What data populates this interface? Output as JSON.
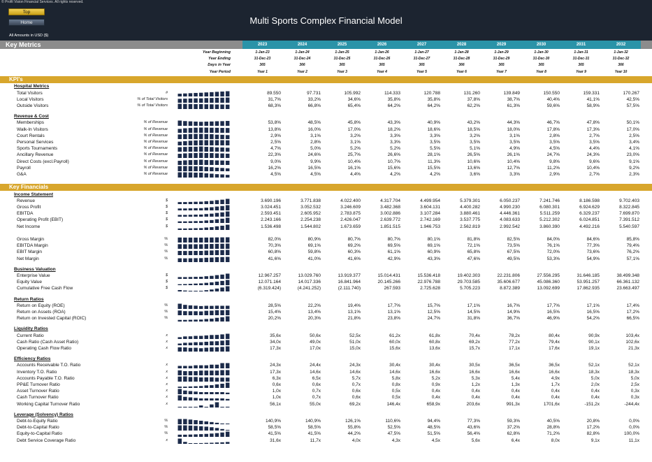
{
  "header": {
    "copyright": "© Profit Vision Financial Services. All rights reserved.",
    "nav_top": "Top",
    "nav_home": "Home",
    "title": "Multi Sports Complex Financial Model",
    "amounts_note": "All Amounts in  USD ($)"
  },
  "key_metrics_title": "Key Metrics",
  "years": [
    "2023",
    "2024",
    "2025",
    "2026",
    "2027",
    "2028",
    "2029",
    "2030",
    "2031",
    "2032"
  ],
  "info_rows": [
    {
      "label": "Year Beginning",
      "values": [
        "1-Jan-23",
        "1-Jan-24",
        "1-Jan-25",
        "1-Jan-26",
        "1-Jan-27",
        "1-Jan-28",
        "1-Jan-29",
        "1-Jan-30",
        "1-Jan-31",
        "1-Jan-32"
      ]
    },
    {
      "label": "Year Ending",
      "values": [
        "31-Dec-23",
        "31-Dec-24",
        "31-Dec-25",
        "31-Dec-26",
        "31-Dec-27",
        "31-Dec-28",
        "31-Dec-29",
        "31-Dec-30",
        "31-Dec-31",
        "31-Dec-32"
      ]
    },
    {
      "label": "Days in Year",
      "values": [
        "365",
        "366",
        "365",
        "365",
        "365",
        "366",
        "365",
        "365",
        "365",
        "366"
      ]
    },
    {
      "label": "Year Period",
      "values": [
        "Year 1",
        "Year 2",
        "Year 3",
        "Year 4",
        "Year 5",
        "Year 6",
        "Year 7",
        "Year 8",
        "Year 9",
        "Year 10"
      ]
    }
  ],
  "colors": {
    "header_bg": "#1c2430",
    "section_bar": "#d8a62c",
    "year_header": "#2a93a8",
    "key_metrics_bar": "#8c8c8c",
    "spark": "#1c2b4a"
  },
  "sections": [
    {
      "title": "KPI's",
      "groups": [
        {
          "title": "Hospital Metrics",
          "rows": [
            {
              "label": "Total Visitors",
              "unit": "#",
              "values": [
                "89.550",
                "97.731",
                "105.992",
                "114.333",
                "120.788",
                "131.260",
                "139.849",
                "150.550",
                "159.331",
                "170.267"
              ]
            },
            {
              "label": "Local Visitors",
              "unit": "% of Total Visitors",
              "values": [
                "31,7%",
                "33,2%",
                "34,6%",
                "35,8%",
                "35,8%",
                "37,8%",
                "38,7%",
                "40,4%",
                "41,1%",
                "42,5%"
              ]
            },
            {
              "label": "Outside Visitors",
              "unit": "% of Total Visitors",
              "values": [
                "68,3%",
                "66,8%",
                "65,4%",
                "64,2%",
                "64,2%",
                "62,2%",
                "61,3%",
                "59,6%",
                "58,9%",
                "57,5%"
              ]
            }
          ]
        },
        {
          "title": "Revenue & Cost",
          "rows": [
            {
              "label": "Memberships",
              "unit": "% of Revenue",
              "values": [
                "53,8%",
                "48,5%",
                "45,8%",
                "43,3%",
                "40,9%",
                "43,2%",
                "44,3%",
                "46,7%",
                "47,8%",
                "50,1%"
              ]
            },
            {
              "label": "Walk-In Visitors",
              "unit": "% of Revenue",
              "values": [
                "13,8%",
                "16,0%",
                "17,0%",
                "18,2%",
                "18,6%",
                "18,5%",
                "18,0%",
                "17,8%",
                "17,3%",
                "17,0%"
              ]
            },
            {
              "label": "Court Rentals",
              "unit": "% of Revenue",
              "values": [
                "2,9%",
                "3,1%",
                "3,2%",
                "3,3%",
                "3,3%",
                "3,2%",
                "3,1%",
                "2,8%",
                "2,7%",
                "2,5%"
              ]
            },
            {
              "label": "Personal Services",
              "unit": "% of Revenue",
              "values": [
                "2,5%",
                "2,8%",
                "3,1%",
                "3,3%",
                "3,5%",
                "3,5%",
                "3,5%",
                "3,5%",
                "3,5%",
                "3,4%"
              ]
            },
            {
              "label": "Sports Tournaments",
              "unit": "% of Revenue",
              "values": [
                "4,7%",
                "5,0%",
                "5,2%",
                "5,2%",
                "5,5%",
                "5,1%",
                "4,9%",
                "4,5%",
                "4,4%",
                "4,1%"
              ]
            },
            {
              "label": "Ancillary Revenue",
              "unit": "% of Revenue",
              "values": [
                "22,3%",
                "24,6%",
                "25,7%",
                "26,6%",
                "28,1%",
                "26,5%",
                "26,1%",
                "24,7%",
                "24,3%",
                "23,0%"
              ]
            },
            {
              "label": "Direct Costs (excl.Payroll)",
              "unit": "% of Revenue",
              "values": [
                "9,0%",
                "9,9%",
                "10,4%",
                "10,7%",
                "11,3%",
                "10,6%",
                "10,4%",
                "9,8%",
                "9,6%",
                "9,1%"
              ]
            },
            {
              "label": "Payroll",
              "unit": "% of Revenue",
              "values": [
                "16,2%",
                "16,5%",
                "16,1%",
                "15,6%",
                "15,5%",
                "13,6%",
                "12,7%",
                "11,2%",
                "10,4%",
                "9,2%"
              ]
            },
            {
              "label": "G&A",
              "unit": "% of Revenue",
              "values": [
                "4,5%",
                "4,5%",
                "4,4%",
                "4,2%",
                "4,2%",
                "3,6%",
                "3,3%",
                "2,9%",
                "2,7%",
                "2,3%"
              ]
            }
          ]
        }
      ]
    },
    {
      "title": "Key Financials",
      "groups": [
        {
          "title": "Income Statement",
          "rows": [
            {
              "label": "Revenue",
              "unit": "$",
              "values": [
                "3.690.196",
                "3.771.838",
                "4.022.400",
                "4.317.704",
                "4.499.954",
                "5.379.301",
                "6.050.237",
                "7.241.746",
                "8.186.598",
                "9.702.403"
              ]
            },
            {
              "label": "Gross Profit",
              "unit": "$",
              "values": [
                "3.024.451",
                "3.052.532",
                "3.246.609",
                "3.482.368",
                "3.604.131",
                "4.400.282",
                "4.990.230",
                "6.080.301",
                "6.924.629",
                "8.322.845"
              ]
            },
            {
              "label": "EBITDA",
              "unit": "$",
              "values": [
                "2.593.451",
                "2.605.952",
                "2.783.875",
                "3.002.886",
                "3.107.284",
                "3.880.461",
                "4.446.361",
                "5.511.259",
                "6.329.237",
                "7.699.870"
              ]
            },
            {
              "label": "Operating Profit (EBIT)",
              "unit": "$",
              "values": [
                "2.243.166",
                "2.254.238",
                "2.426.047",
                "2.639.772",
                "2.742.169",
                "3.537.775",
                "4.083.633",
                "5.212.302",
                "6.024.851",
                "7.391.512"
              ]
            },
            {
              "label": "Net Income",
              "unit": "$",
              "values": [
                "1.536.498",
                "1.544.802",
                "1.673.659",
                "1.851.515",
                "1.946.753",
                "2.562.819",
                "2.992.542",
                "3.860.390",
                "4.492.216",
                "5.540.597"
              ]
            },
            {
              "label": "",
              "unit": "",
              "values": [],
              "spacer": true
            },
            {
              "label": "Gross Margin",
              "unit": "%",
              "values": [
                "82,0%",
                "80,9%",
                "80,7%",
                "80,7%",
                "80,1%",
                "81,8%",
                "82,5%",
                "84,0%",
                "84,6%",
                "85,8%"
              ]
            },
            {
              "label": "EBITDA Margin",
              "unit": "%",
              "values": [
                "70,3%",
                "69,1%",
                "69,2%",
                "69,5%",
                "69,1%",
                "72,1%",
                "73,5%",
                "76,1%",
                "77,3%",
                "79,4%"
              ]
            },
            {
              "label": "EBIT Margin",
              "unit": "%",
              "values": [
                "60,8%",
                "59,8%",
                "60,3%",
                "61,1%",
                "60,9%",
                "65,8%",
                "67,5%",
                "72,0%",
                "73,6%",
                "76,2%"
              ]
            },
            {
              "label": "Net Margin",
              "unit": "%",
              "values": [
                "41,6%",
                "41,0%",
                "41,6%",
                "42,9%",
                "43,3%",
                "47,6%",
                "49,5%",
                "53,3%",
                "54,9%",
                "57,1%"
              ]
            }
          ]
        },
        {
          "title": "Business Valuation",
          "rows": [
            {
              "label": "Enterprise Value",
              "unit": "$",
              "values": [
                "12.967.257",
                "13.029.760",
                "13.919.377",
                "15.014.431",
                "15.536.418",
                "19.402.303",
                "22.231.806",
                "27.556.295",
                "31.646.185",
                "38.499.348"
              ]
            },
            {
              "label": "Equity Value",
              "unit": "$",
              "values": [
                "12.071.164",
                "14.017.336",
                "16.841.964",
                "20.145.266",
                "22.976.788",
                "29.703.585",
                "35.606.677",
                "45.086.360",
                "53.951.257",
                "66.361.132"
              ]
            },
            {
              "label": "Cumulative Free Cash Flow",
              "unit": "$",
              "values": [
                "(6.319.424)",
                "(4.241.252)",
                "(2.111.740)",
                "267.593",
                "2.725.628",
                "5.705.223",
                "8.872.389",
                "13.092.699",
                "17.862.935",
                "23.663.497"
              ]
            }
          ]
        },
        {
          "title": "Return Ratios",
          "rows": [
            {
              "label": "Return on Equity (ROE)",
              "unit": "%",
              "values": [
                "28,5%",
                "22,2%",
                "19,4%",
                "17,7%",
                "15,7%",
                "17,1%",
                "16,7%",
                "17,7%",
                "17,1%",
                "17,4%"
              ]
            },
            {
              "label": "Return on Assets (ROA)",
              "unit": "%",
              "values": [
                "15,4%",
                "13,4%",
                "13,1%",
                "13,1%",
                "12,5%",
                "14,5%",
                "14,9%",
                "16,5%",
                "16,5%",
                "17,2%"
              ]
            },
            {
              "label": "Return on Invested Capital (ROIC)",
              "unit": "%",
              "values": [
                "20,2%",
                "20,3%",
                "21,8%",
                "23,8%",
                "24,7%",
                "31,8%",
                "36,7%",
                "46,9%",
                "54,2%",
                "66,5%"
              ]
            }
          ]
        },
        {
          "title": "Liquidity Ratios",
          "rows": [
            {
              "label": "Current Ratio",
              "unit": "x",
              "values": [
                "35,6x",
                "50,6x",
                "52,5x",
                "61,2x",
                "61,8x",
                "70,4x",
                "78,2x",
                "80,4x",
                "90,9x",
                "103,4x"
              ]
            },
            {
              "label": "Cash Ratio (Cash Asset Ratio)",
              "unit": "x",
              "values": [
                "34,0x",
                "49,0x",
                "51,0x",
                "60,0x",
                "60,8x",
                "69,2x",
                "77,2x",
                "79,4x",
                "90,1x",
                "102,6x"
              ]
            },
            {
              "label": "Operating Cash Flow Ratio",
              "unit": "x",
              "values": [
                "17,3x",
                "17,0x",
                "15,0x",
                "15,6x",
                "13,6x",
                "15,7x",
                "17,1x",
                "17,6x",
                "19,1x",
                "21,3x"
              ]
            }
          ]
        },
        {
          "title": "Efficiency Ratios",
          "rows": [
            {
              "label": "Accounts Receivable T.O. Ratio",
              "unit": "x",
              "values": [
                "24,3x",
                "24,4x",
                "24,3x",
                "30,4x",
                "30,4x",
                "30,5x",
                "36,5x",
                "36,5x",
                "52,1x",
                "52,1x"
              ]
            },
            {
              "label": "Inventory T.O. Ratio",
              "unit": "x",
              "values": [
                "17,3x",
                "14,6x",
                "14,6x",
                "14,6x",
                "16,6x",
                "16,6x",
                "16,6x",
                "16,6x",
                "18,3x",
                "18,3x"
              ]
            },
            {
              "label": "Accounts Payable T.O. Ratio",
              "unit": "x",
              "values": [
                "6,3x",
                "6,5x",
                "5,7x",
                "5,8x",
                "5,2x",
                "5,3x",
                "5,4x",
                "4,9x",
                "5,0x",
                "5,0x"
              ]
            },
            {
              "label": "PP&E Turnover Ratio",
              "unit": "x",
              "values": [
                "0,6x",
                "0,6x",
                "0,7x",
                "0,8x",
                "0,9x",
                "1,2x",
                "1,3x",
                "1,7x",
                "2,0x",
                "2,5x"
              ]
            },
            {
              "label": "Asset Turnover Ratio",
              "unit": "x",
              "values": [
                "1,0x",
                "0,7x",
                "0,6x",
                "0,5x",
                "0,4x",
                "0,4x",
                "0,4x",
                "0,4x",
                "0,4x",
                "0,3x"
              ]
            },
            {
              "label": "Cash Turnover Ratio",
              "unit": "x",
              "values": [
                "1,0x",
                "0,7x",
                "0,6x",
                "0,5x",
                "0,4x",
                "0,4x",
                "0,4x",
                "0,4x",
                "0,4x",
                "0,3x"
              ]
            },
            {
              "label": "Working Capital Turnover Ratio",
              "unit": "x",
              "values": [
                "56,1x",
                "55,0x",
                "69,2x",
                "146,4x",
                "658,9x",
                "203,6x",
                "991,3x",
                "1701,6x",
                "-151,2x",
                "-244,4x"
              ]
            }
          ]
        },
        {
          "title": "Leverage (Solvency) Ratios",
          "rows": [
            {
              "label": "Debt-to-Equity Ratio",
              "unit": "%",
              "values": [
                "140,9%",
                "140,9%",
                "126,1%",
                "110,6%",
                "94,4%",
                "77,3%",
                "59,3%",
                "40,5%",
                "20,8%",
                "0,0%"
              ]
            },
            {
              "label": "Debt-to-Capital Ratio",
              "unit": "%",
              "values": [
                "58,5%",
                "58,5%",
                "55,8%",
                "52,5%",
                "48,5%",
                "43,6%",
                "37,2%",
                "28,8%",
                "17,2%",
                "0,0%"
              ]
            },
            {
              "label": "Equity-to-Capital Ratio",
              "unit": "%",
              "values": [
                "41,5%",
                "41,5%",
                "44,2%",
                "47,5%",
                "51,5%",
                "56,4%",
                "62,8%",
                "71,2%",
                "82,8%",
                "100,0%"
              ]
            },
            {
              "label": "Debt Service Coverage Ratio",
              "unit": "x",
              "values": [
                "31,6x",
                "11,7x",
                "4,0x",
                "4,3x",
                "4,5x",
                "5,6x",
                "6,4x",
                "8,0x",
                "9,1x",
                "11,1x"
              ]
            }
          ]
        }
      ]
    }
  ]
}
